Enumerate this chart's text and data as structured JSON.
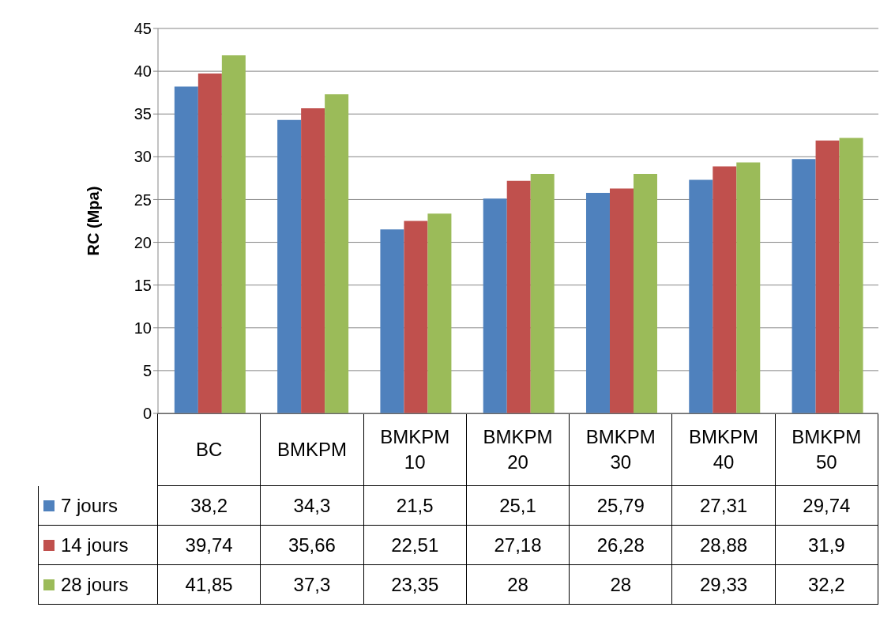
{
  "chart_data": {
    "type": "bar",
    "ylabel": "RC (Mpa)",
    "categories": [
      "BC",
      "BMKPM",
      "BMKPM 10",
      "BMKPM 20",
      "BMKPM 30",
      "BMKPM 40",
      "BMKPM 50"
    ],
    "series": [
      {
        "name": "7 jours",
        "color": "#4f81bd",
        "values": [
          38.2,
          34.3,
          21.5,
          25.1,
          25.79,
          27.31,
          29.74
        ],
        "value_labels": [
          "38,2",
          "34,3",
          "21,5",
          "25,1",
          "25,79",
          "27,31",
          "29,74"
        ]
      },
      {
        "name": "14 jours",
        "color": "#c0504d",
        "values": [
          39.74,
          35.66,
          22.51,
          27.18,
          26.28,
          28.88,
          31.9
        ],
        "value_labels": [
          "39,74",
          "35,66",
          "22,51",
          "27,18",
          "26,28",
          "28,88",
          "31,9"
        ]
      },
      {
        "name": "28 jours",
        "color": "#9bbb59",
        "values": [
          41.85,
          37.3,
          23.35,
          28,
          28,
          29.33,
          32.2
        ],
        "value_labels": [
          "41,85",
          "37,3",
          "23,35",
          "28",
          "28",
          "29,33",
          "32,2"
        ]
      }
    ],
    "ylim": [
      0,
      45
    ],
    "yticks": [
      0,
      5,
      10,
      15,
      20,
      25,
      30,
      35,
      40,
      45
    ],
    "grid": "y",
    "legend": "bottom"
  }
}
